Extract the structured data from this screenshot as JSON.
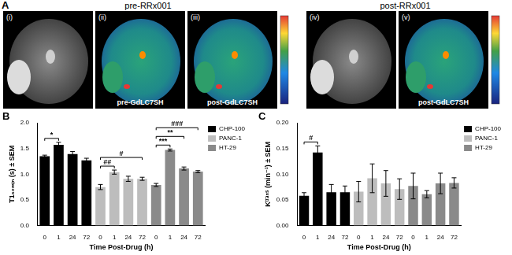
{
  "panel_a": {
    "label": "A",
    "groups": [
      {
        "title": "pre-RRx001",
        "images": [
          {
            "label": "(i)",
            "kind": "grayscale"
          },
          {
            "label": "(ii)",
            "kind": "colormap",
            "caption": "pre-GdLC7SH"
          },
          {
            "label": "(iii)",
            "kind": "colormap",
            "caption": "post-GdLC7SH",
            "colorbar": true
          }
        ]
      },
      {
        "title": "post-RRx001",
        "images": [
          {
            "label": "(iv)",
            "kind": "grayscale"
          },
          {
            "label": "(v)",
            "kind": "colormap",
            "caption": "post-GdLC7SH",
            "colorbar": true
          }
        ]
      }
    ]
  },
  "chart_data": [
    {
      "panel_label": "B",
      "type": "bar",
      "x_label": "Time Post-Drug (h)",
      "y_label": "T1₅₀ₘᵢₙ (s) ± SEM",
      "categories": [
        "0",
        "1",
        "24",
        "72",
        "0",
        "1",
        "24",
        "72",
        "0",
        "1",
        "24",
        "72"
      ],
      "series": [
        {
          "name": "CHP-100",
          "color": "#000000",
          "values": [
            1.35,
            1.57,
            1.39,
            1.27,
            null,
            null,
            null,
            null,
            null,
            null,
            null,
            null
          ],
          "errors": [
            0.02,
            0.05,
            0.05,
            0.04,
            null,
            null,
            null,
            null,
            null,
            null,
            null,
            null
          ]
        },
        {
          "name": "PANC-1",
          "color": "#bdbdbd",
          "values": [
            null,
            null,
            null,
            null,
            0.75,
            1.04,
            0.91,
            0.91,
            null,
            null,
            null,
            null
          ],
          "errors": [
            null,
            null,
            null,
            null,
            0.05,
            0.04,
            0.05,
            0.03,
            null,
            null,
            null,
            null
          ]
        },
        {
          "name": "HT-29",
          "color": "#8a8a8a",
          "values": [
            null,
            null,
            null,
            null,
            null,
            null,
            null,
            null,
            0.79,
            1.47,
            1.11,
            1.05
          ],
          "errors": [
            null,
            null,
            null,
            null,
            null,
            null,
            null,
            null,
            0.03,
            0.02,
            0.03,
            0.02
          ]
        }
      ],
      "annotations": [
        {
          "text": "*",
          "series": "CHP-100",
          "from": "0",
          "to": "1"
        },
        {
          "text": "##",
          "series": "PANC-1",
          "from": "0",
          "to": "1"
        },
        {
          "text": "#",
          "series": "PANC-1",
          "from": "0",
          "to": "72"
        },
        {
          "text": "***",
          "series": "HT-29",
          "from": "0",
          "to": "1"
        },
        {
          "text": "**",
          "series": "HT-29",
          "from": "0",
          "to": "24"
        },
        {
          "text": "###",
          "series": "HT-29",
          "from": "0",
          "to": "72"
        }
      ],
      "ylim": [
        0,
        2
      ],
      "yticks": [
        {
          "value": 0,
          "label": "0.0"
        },
        {
          "value": 0.5,
          "label": "0.5"
        },
        {
          "value": 1,
          "label": "1.0"
        },
        {
          "value": 1.5,
          "label": "1.5"
        },
        {
          "value": 2,
          "label": "2.0"
        }
      ],
      "grid": false,
      "legend": "right"
    },
    {
      "panel_label": "C",
      "type": "bar",
      "x_label": "Time Post-Drug (h)",
      "y_label": "Kᵗʳᵃⁿˢ (min⁻¹) ± SEM",
      "categories": [
        "0",
        "1",
        "24",
        "72",
        "0",
        "1",
        "24",
        "72",
        "0",
        "1",
        "24",
        "72"
      ],
      "series": [
        {
          "name": "CHP-100",
          "color": "#000000",
          "values": [
            0.058,
            0.142,
            0.065,
            0.065,
            null,
            null,
            null,
            null,
            null,
            null,
            null,
            null
          ],
          "errors": [
            0.006,
            0.013,
            0.015,
            0.012,
            null,
            null,
            null,
            null,
            null,
            null,
            null,
            null
          ]
        },
        {
          "name": "PANC-1",
          "color": "#bdbdbd",
          "values": [
            null,
            null,
            null,
            null,
            0.066,
            0.092,
            0.082,
            0.071,
            null,
            null,
            null,
            null
          ],
          "errors": [
            null,
            null,
            null,
            null,
            0.02,
            0.028,
            0.025,
            0.02,
            null,
            null,
            null,
            null
          ]
        },
        {
          "name": "HT-29",
          "color": "#8a8a8a",
          "values": [
            null,
            null,
            null,
            null,
            null,
            null,
            null,
            null,
            0.077,
            0.061,
            0.082,
            0.083
          ],
          "errors": [
            null,
            null,
            null,
            null,
            null,
            null,
            null,
            null,
            0.025,
            0.007,
            0.02,
            0.01
          ]
        }
      ],
      "annotations": [
        {
          "text": "#",
          "series": "CHP-100",
          "from": "0",
          "to": "1"
        }
      ],
      "ylim": [
        0,
        0.2
      ],
      "yticks": [
        {
          "value": 0,
          "label": "0.00"
        },
        {
          "value": 0.05,
          "label": "0.05"
        },
        {
          "value": 0.1,
          "label": "0.10"
        },
        {
          "value": 0.15,
          "label": "0.15"
        },
        {
          "value": 0.2,
          "label": "0.20"
        }
      ],
      "grid": false,
      "legend": "right"
    }
  ]
}
